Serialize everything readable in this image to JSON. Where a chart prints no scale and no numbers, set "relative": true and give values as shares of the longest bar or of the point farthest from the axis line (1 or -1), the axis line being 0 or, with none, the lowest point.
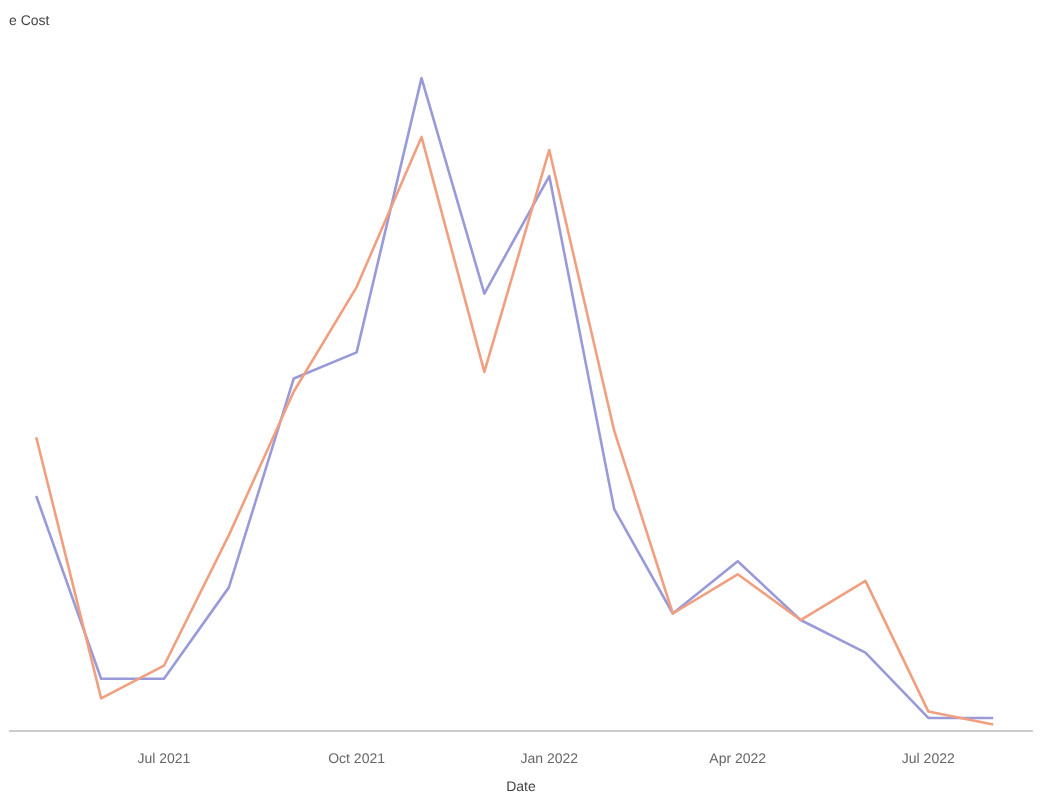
{
  "chart_data": {
    "type": "line",
    "title": "e Cost",
    "xlabel": "Date",
    "relative": true,
    "x": [
      "2021-05",
      "2021-06",
      "2021-07",
      "2021-08",
      "2021-09",
      "2021-10",
      "2021-11",
      "2021-12",
      "2022-01",
      "2022-02",
      "2022-03",
      "2022-04",
      "2022-05",
      "2022-06",
      "2022-07",
      "2022-08"
    ],
    "xlim": [
      "2021-04-18",
      "2022-08-20"
    ],
    "xticks": [
      {
        "value": "2021-07",
        "label": "Jul 2021"
      },
      {
        "value": "2021-10",
        "label": "Oct 2021"
      },
      {
        "value": "2022-01",
        "label": "Jan 2022"
      },
      {
        "value": "2022-04",
        "label": "Apr 2022"
      },
      {
        "value": "2022-07",
        "label": "Jul 2022"
      }
    ],
    "series": [
      {
        "color": "#9a9ad8",
        "values": [
          0.36,
          0.08,
          0.08,
          0.22,
          0.54,
          0.58,
          1.0,
          0.67,
          0.85,
          0.34,
          0.18,
          0.26,
          0.17,
          0.12,
          0.02,
          0.02
        ]
      },
      {
        "color": "#f0a080",
        "values": [
          0.45,
          0.05,
          0.1,
          0.3,
          0.52,
          0.68,
          0.91,
          0.55,
          0.89,
          0.46,
          0.18,
          0.24,
          0.17,
          0.23,
          0.03,
          0.01
        ]
      }
    ],
    "marker": "none",
    "line_style": "solid"
  }
}
